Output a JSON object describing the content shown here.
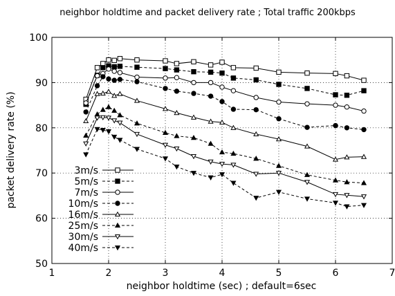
{
  "chart_data": {
    "type": "line",
    "title": "neighbor holdtime and packet delivery rate ; Total traffic 200kbps",
    "xlabel": "neighbor holdtime (sec) ; default=6sec",
    "ylabel": "packet delivery rate (%)",
    "xlim": [
      1,
      7
    ],
    "ylim": [
      50,
      100
    ],
    "xticks": [
      1,
      2,
      3,
      4,
      5,
      6,
      7
    ],
    "yticks": [
      50,
      60,
      70,
      80,
      90,
      100
    ],
    "grid": true,
    "legend_position": "bottom-left",
    "series": [
      {
        "name": "3m/s",
        "line": "solid",
        "marker": "square-open",
        "x": [
          1.6,
          1.8,
          1.9,
          2.0,
          2.1,
          2.2,
          2.5,
          3.0,
          3.2,
          3.5,
          3.8,
          4.0,
          4.2,
          4.6,
          5.0,
          5.5,
          6.0,
          6.2,
          6.5
        ],
        "y": [
          86.3,
          93.3,
          94.2,
          95.0,
          94.9,
          95.3,
          95.0,
          94.8,
          94.2,
          94.6,
          93.9,
          94.5,
          93.3,
          93.2,
          92.3,
          92.1,
          92.0,
          91.5,
          90.5
        ]
      },
      {
        "name": "5m/s",
        "line": "dashed",
        "marker": "square-filled",
        "x": [
          1.6,
          1.8,
          1.9,
          2.0,
          2.1,
          2.2,
          2.5,
          3.0,
          3.2,
          3.5,
          3.8,
          4.0,
          4.2,
          4.6,
          5.0,
          5.5,
          6.0,
          6.2,
          6.5
        ],
        "y": [
          85.2,
          91.6,
          93.3,
          93.7,
          93.5,
          93.6,
          93.4,
          93.1,
          92.8,
          92.4,
          92.3,
          92.1,
          91.0,
          90.6,
          89.6,
          88.7,
          87.3,
          87.2,
          88.2
        ]
      },
      {
        "name": "7m/s",
        "line": "solid",
        "marker": "circle-open",
        "x": [
          1.6,
          1.8,
          1.9,
          2.0,
          2.1,
          2.2,
          2.5,
          3.0,
          3.2,
          3.5,
          3.8,
          4.0,
          4.2,
          4.6,
          5.0,
          5.5,
          6.0,
          6.2,
          6.5
        ],
        "y": [
          85.5,
          91.5,
          92.0,
          93.0,
          92.5,
          92.2,
          91.2,
          91.0,
          91.1,
          90.0,
          90.0,
          89.0,
          88.2,
          86.7,
          85.7,
          85.3,
          85.0,
          84.6,
          83.7
        ]
      },
      {
        "name": "10m/s",
        "line": "dashed",
        "marker": "circle-filled",
        "x": [
          1.6,
          1.8,
          1.9,
          2.0,
          2.1,
          2.2,
          2.5,
          3.0,
          3.2,
          3.5,
          3.8,
          4.0,
          4.2,
          4.6,
          5.0,
          5.5,
          6.0,
          6.2,
          6.5
        ],
        "y": [
          83.5,
          89.3,
          91.3,
          90.8,
          90.5,
          90.7,
          90.2,
          88.7,
          88.1,
          87.6,
          87.0,
          85.8,
          84.1,
          84.0,
          82.0,
          80.1,
          80.5,
          80.0,
          79.6
        ]
      },
      {
        "name": "16m/s",
        "line": "solid",
        "marker": "triangle-up-open",
        "x": [
          1.6,
          1.8,
          1.9,
          2.0,
          2.1,
          2.2,
          2.5,
          3.0,
          3.2,
          3.5,
          3.8,
          4.0,
          4.2,
          4.6,
          5.0,
          5.5,
          6.0,
          6.2,
          6.5
        ],
        "y": [
          81.5,
          87.5,
          87.6,
          88.0,
          87.1,
          87.5,
          86.0,
          84.2,
          83.3,
          82.3,
          81.4,
          81.2,
          80.0,
          78.6,
          77.5,
          75.9,
          73.0,
          73.5,
          73.6
        ]
      },
      {
        "name": "25m/s",
        "line": "dashed",
        "marker": "triangle-up-filled",
        "x": [
          1.6,
          1.8,
          1.9,
          2.0,
          2.1,
          2.2,
          2.5,
          3.0,
          3.2,
          3.5,
          3.8,
          4.0,
          4.2,
          4.6,
          5.0,
          5.5,
          6.0,
          6.2,
          6.5
        ],
        "y": [
          78.3,
          83.0,
          84.0,
          84.6,
          83.8,
          82.8,
          81.0,
          78.9,
          78.2,
          77.8,
          76.5,
          74.6,
          74.3,
          73.2,
          71.6,
          69.6,
          68.4,
          68.0,
          67.8
        ]
      },
      {
        "name": "30m/s",
        "line": "solid",
        "marker": "triangle-down-open",
        "x": [
          1.6,
          1.8,
          1.9,
          2.0,
          2.1,
          2.2,
          2.5,
          3.0,
          3.2,
          3.5,
          3.8,
          4.0,
          4.2,
          4.6,
          5.0,
          5.5,
          6.0,
          6.2,
          6.5
        ],
        "y": [
          76.5,
          82.2,
          82.3,
          82.2,
          81.6,
          81.1,
          78.6,
          76.2,
          75.4,
          73.7,
          72.5,
          72.0,
          71.8,
          69.8,
          70.0,
          68.0,
          65.3,
          65.1,
          64.8
        ]
      },
      {
        "name": "40m/s",
        "line": "dashed",
        "marker": "triangle-down-filled",
        "x": [
          1.6,
          1.8,
          1.9,
          2.0,
          2.1,
          2.2,
          2.5,
          3.0,
          3.2,
          3.5,
          3.8,
          4.0,
          4.2,
          4.6,
          5.0,
          5.5,
          6.0,
          6.2,
          6.5
        ],
        "y": [
          74.1,
          79.7,
          79.5,
          79.2,
          78.0,
          77.3,
          75.3,
          73.2,
          71.4,
          70.0,
          69.0,
          69.7,
          67.8,
          64.5,
          65.8,
          64.3,
          63.4,
          62.6,
          62.9
        ]
      }
    ]
  }
}
